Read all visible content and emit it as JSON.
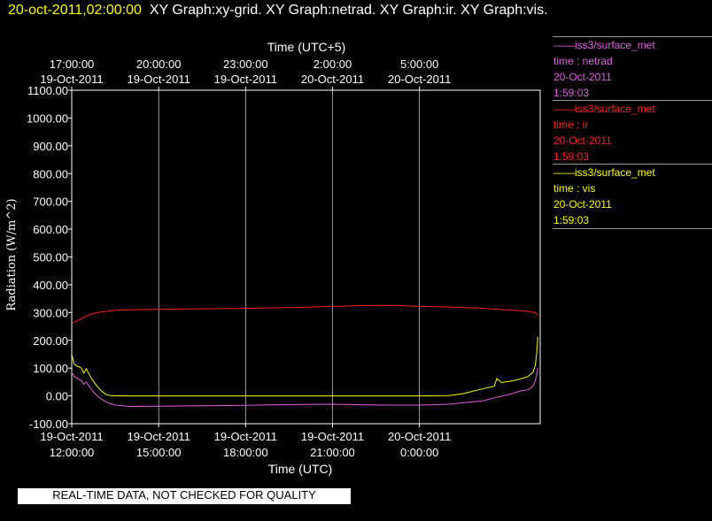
{
  "header": {
    "timestamp": "20-oct-2011,02:00:00",
    "graph_titles": "XY Graph:xy-grid.  XY Graph:netrad.  XY Graph:ir.  XY Graph:vis."
  },
  "footer": {
    "notice": "REAL-TIME DATA, NOT CHECKED FOR QUALITY"
  },
  "legend": [
    {
      "title": "——iss3/surface_met",
      "series": "time : netrad",
      "date": "20-Oct-2011",
      "time": "1:59:03",
      "color": "#e060e0"
    },
    {
      "title": "——iss3/surface_met",
      "series": "time : ir",
      "date": "20-Oct-2011",
      "time": "1:59:03",
      "color": "#ff2020"
    },
    {
      "title": "——iss3/surface_met",
      "series": "time : vis",
      "date": "20-Oct-2011",
      "time": "1:59:03",
      "color": "#ffff00"
    }
  ],
  "colors": {
    "background": "#000000",
    "axes": "#ffffff",
    "grid": "#ffffff"
  },
  "chart_data": {
    "type": "line",
    "ylabel": "Radiation (W/m^2)",
    "xlabel": "Time (UTC)",
    "x2label": "Time (UTC+5)",
    "ylim": [
      -100,
      1100
    ],
    "yticks": [
      "-100.00",
      "0.00",
      "100.00",
      "200.00",
      "300.00",
      "400.00",
      "500.00",
      "600.00",
      "700.00",
      "800.00",
      "900.00",
      "1000.00",
      "1100.00"
    ],
    "xlim": [
      "2011-10-19 12:00",
      "2011-10-20 04:10"
    ],
    "xticks_bottom": [
      {
        "x": "2011-10-19 12:00",
        "date": "19-Oct-2011",
        "time": "12:00:00"
      },
      {
        "x": "2011-10-19 15:00",
        "date": "19-Oct-2011",
        "time": "15:00:00"
      },
      {
        "x": "2011-10-19 18:00",
        "date": "19-Oct-2011",
        "time": "18:00:00"
      },
      {
        "x": "2011-10-19 21:00",
        "date": "19-Oct-2011",
        "time": "21:00:00"
      },
      {
        "x": "2011-10-20 00:00",
        "date": "20-Oct-2011",
        "time": "0:00:00"
      }
    ],
    "xticks_top": [
      {
        "x": "2011-10-19 12:00",
        "date": "19-Oct-2011",
        "time": "17:00:00"
      },
      {
        "x": "2011-10-19 15:00",
        "date": "19-Oct-2011",
        "time": "20:00:00"
      },
      {
        "x": "2011-10-19 18:00",
        "date": "19-Oct-2011",
        "time": "23:00:00"
      },
      {
        "x": "2011-10-19 21:00",
        "date": "20-Oct-2011",
        "time": "2:00:00"
      },
      {
        "x": "2011-10-20 00:00",
        "date": "20-Oct-2011",
        "time": "5:00:00"
      }
    ],
    "grid": true,
    "series": [
      {
        "name": "time : ir",
        "color": "#ff2020",
        "points": [
          [
            "2011-10-19 12:00",
            262
          ],
          [
            "2011-10-19 12:10",
            270
          ],
          [
            "2011-10-19 12:20",
            278
          ],
          [
            "2011-10-19 12:30",
            288
          ],
          [
            "2011-10-19 12:45",
            297
          ],
          [
            "2011-10-19 13:00",
            302
          ],
          [
            "2011-10-19 13:15",
            305
          ],
          [
            "2011-10-19 13:30",
            308
          ],
          [
            "2011-10-19 14:00",
            310
          ],
          [
            "2011-10-19 14:30",
            311
          ],
          [
            "2011-10-19 15:00",
            312
          ],
          [
            "2011-10-19 16:00",
            313
          ],
          [
            "2011-10-19 17:00",
            314
          ],
          [
            "2011-10-19 18:00",
            315
          ],
          [
            "2011-10-19 19:00",
            317
          ],
          [
            "2011-10-19 20:00",
            319
          ],
          [
            "2011-10-19 21:00",
            322
          ],
          [
            "2011-10-19 22:00",
            325
          ],
          [
            "2011-10-19 23:00",
            326
          ],
          [
            "2011-10-20 00:00",
            322
          ],
          [
            "2011-10-20 01:00",
            320
          ],
          [
            "2011-10-20 02:00",
            316
          ],
          [
            "2011-10-20 03:00",
            310
          ],
          [
            "2011-10-20 03:40",
            305
          ],
          [
            "2011-10-20 04:00",
            300
          ],
          [
            "2011-10-20 04:05",
            290
          ]
        ]
      },
      {
        "name": "time : vis",
        "color": "#ffff00",
        "points": [
          [
            "2011-10-19 12:00",
            150
          ],
          [
            "2011-10-19 12:05",
            115
          ],
          [
            "2011-10-19 12:10",
            108
          ],
          [
            "2011-10-19 12:15",
            105
          ],
          [
            "2011-10-19 12:20",
            100
          ],
          [
            "2011-10-19 12:25",
            82
          ],
          [
            "2011-10-19 12:30",
            98
          ],
          [
            "2011-10-19 12:40",
            65
          ],
          [
            "2011-10-19 12:50",
            40
          ],
          [
            "2011-10-19 13:00",
            20
          ],
          [
            "2011-10-19 13:10",
            6
          ],
          [
            "2011-10-19 13:20",
            1
          ],
          [
            "2011-10-19 14:00",
            0
          ],
          [
            "2011-10-19 18:00",
            0
          ],
          [
            "2011-10-19 22:00",
            0
          ],
          [
            "2011-10-20 00:00",
            0
          ],
          [
            "2011-10-20 01:00",
            1
          ],
          [
            "2011-10-20 01:30",
            8
          ],
          [
            "2011-10-20 02:10",
            25
          ],
          [
            "2011-10-20 02:35",
            35
          ],
          [
            "2011-10-20 02:40",
            62
          ],
          [
            "2011-10-20 02:50",
            48
          ],
          [
            "2011-10-20 03:05",
            52
          ],
          [
            "2011-10-20 03:15",
            55
          ],
          [
            "2011-10-20 03:30",
            62
          ],
          [
            "2011-10-20 03:45",
            70
          ],
          [
            "2011-10-20 03:55",
            85
          ],
          [
            "2011-10-20 04:00",
            110
          ],
          [
            "2011-10-20 04:03",
            160
          ],
          [
            "2011-10-20 04:05",
            212
          ]
        ]
      },
      {
        "name": "time : netrad",
        "color": "#e060e0",
        "points": [
          [
            "2011-10-19 12:00",
            85
          ],
          [
            "2011-10-19 12:05",
            70
          ],
          [
            "2011-10-19 12:10",
            65
          ],
          [
            "2011-10-19 12:15",
            60
          ],
          [
            "2011-10-19 12:20",
            55
          ],
          [
            "2011-10-19 12:25",
            42
          ],
          [
            "2011-10-19 12:30",
            50
          ],
          [
            "2011-10-19 12:40",
            25
          ],
          [
            "2011-10-19 12:50",
            5
          ],
          [
            "2011-10-19 13:00",
            -10
          ],
          [
            "2011-10-19 13:15",
            -25
          ],
          [
            "2011-10-19 13:30",
            -33
          ],
          [
            "2011-10-19 14:00",
            -38
          ],
          [
            "2011-10-19 15:00",
            -37
          ],
          [
            "2011-10-19 16:00",
            -36
          ],
          [
            "2011-10-19 17:00",
            -35
          ],
          [
            "2011-10-19 18:00",
            -34
          ],
          [
            "2011-10-19 19:00",
            -32
          ],
          [
            "2011-10-19 20:00",
            -31
          ],
          [
            "2011-10-19 21:00",
            -30
          ],
          [
            "2011-10-19 22:00",
            -32
          ],
          [
            "2011-10-19 23:00",
            -33
          ],
          [
            "2011-10-20 00:00",
            -33
          ],
          [
            "2011-10-20 01:00",
            -30
          ],
          [
            "2011-10-20 01:30",
            -25
          ],
          [
            "2011-10-20 02:10",
            -18
          ],
          [
            "2011-10-20 02:40",
            -5
          ],
          [
            "2011-10-20 03:05",
            5
          ],
          [
            "2011-10-20 03:30",
            18
          ],
          [
            "2011-10-20 03:45",
            22
          ],
          [
            "2011-10-20 03:55",
            35
          ],
          [
            "2011-10-20 04:00",
            55
          ],
          [
            "2011-10-20 04:03",
            80
          ],
          [
            "2011-10-20 04:05",
            100
          ]
        ]
      }
    ]
  }
}
